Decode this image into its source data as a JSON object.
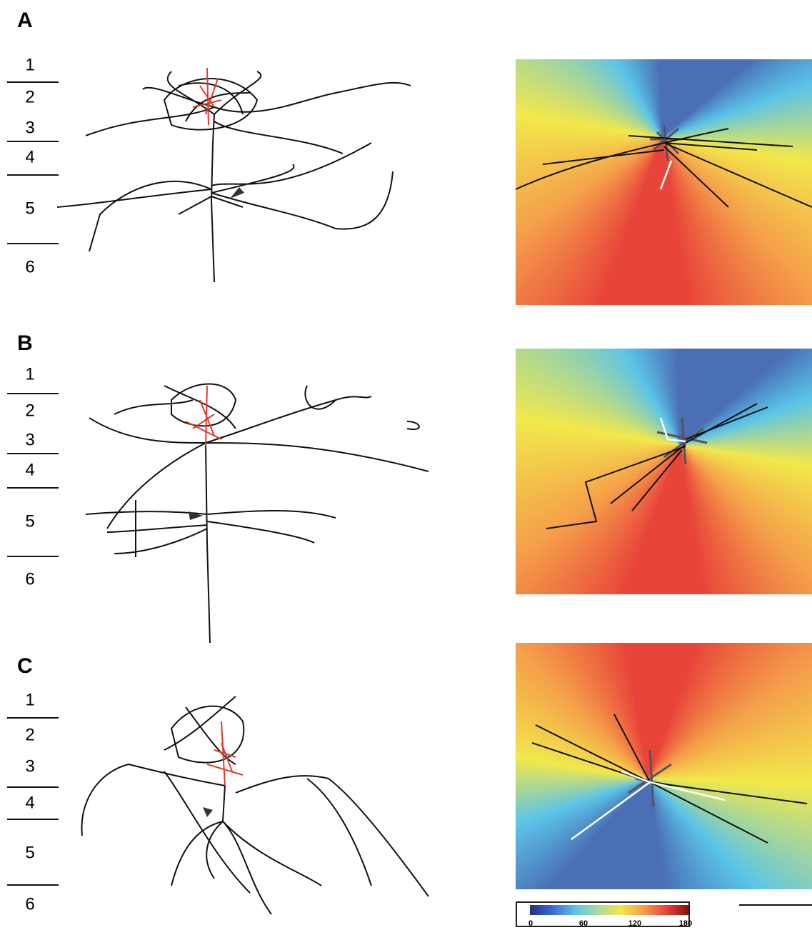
{
  "panels": [
    {
      "label": "A",
      "layers": [
        1,
        2,
        3,
        4,
        5,
        6
      ]
    },
    {
      "label": "B",
      "layers": [
        1,
        2,
        3,
        4,
        5,
        6
      ]
    },
    {
      "label": "C",
      "layers": [
        1,
        2,
        3,
        4,
        5,
        6
      ]
    }
  ],
  "colorbar": {
    "ticks": [
      0,
      60,
      120,
      180
    ]
  }
}
